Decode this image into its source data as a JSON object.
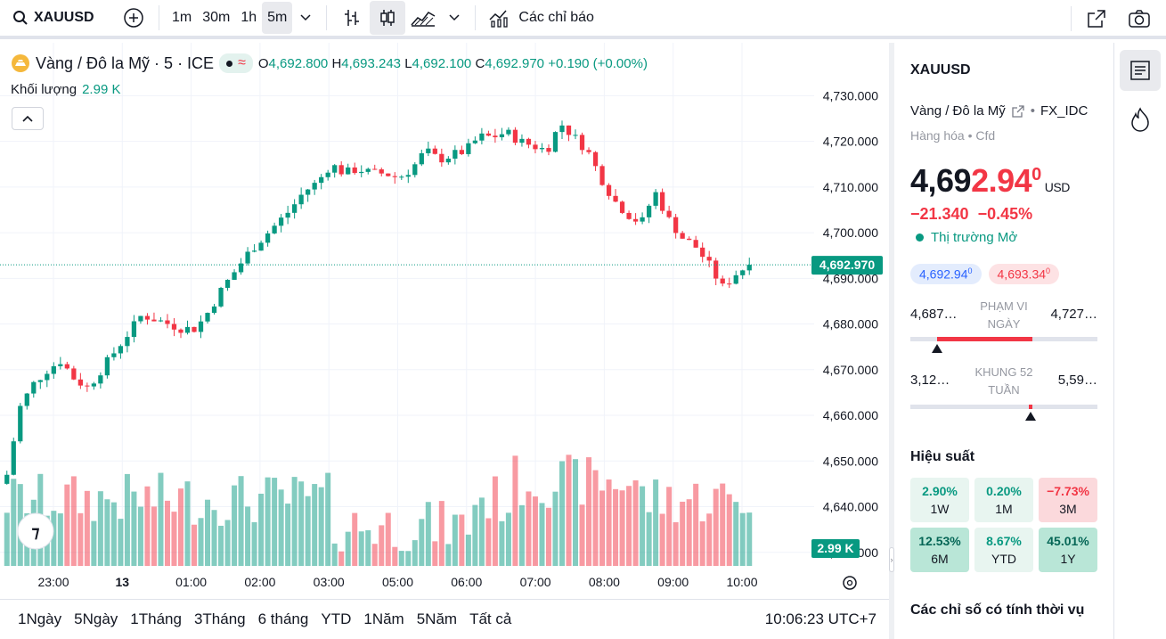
{
  "topbar": {
    "symbol": "XAUUSD",
    "timeframes": [
      "1m",
      "30m",
      "1h",
      "5m"
    ],
    "active_timeframe": "5m",
    "indicators_label": "Các chỉ báo"
  },
  "legend": {
    "title": "Vàng / Đô la Mỹ · 5 · ICE",
    "open_label": "O",
    "open": "4,692.800",
    "high_label": "H",
    "high": "4,693.243",
    "low_label": "L",
    "low": "4,692.100",
    "close_label": "C",
    "close": "4,692.970",
    "change": "+0.190 (+0.00%)",
    "volume_label": "Khối lượng",
    "volume_value": "2.99 K"
  },
  "chart_data": {
    "type": "candlestick",
    "price_axis_ticks": [
      "4,730.000",
      "4,720.000",
      "4,710.000",
      "4,700.000",
      "4,690.000",
      "4,680.000",
      "4,670.000",
      "4,660.000",
      "4,650.000",
      "4,640.000",
      "4,630.000"
    ],
    "time_axis_ticks": [
      "23:00",
      "13",
      "01:00",
      "02:00",
      "03:00",
      "05:00",
      "06:00",
      "07:00",
      "08:00",
      "09:00",
      "10:00"
    ],
    "last_price_label": "4,692.970",
    "last_volume_label": "2.99 K",
    "ylim": [
      4628,
      4733
    ],
    "close_path": [
      4647,
      4662,
      4667,
      4670,
      4672,
      4668,
      4666,
      4670,
      4674,
      4678,
      4682,
      4681,
      4680,
      4679,
      4679,
      4683,
      4688,
      4692,
      4696,
      4699,
      4702,
      4705,
      4709,
      4711,
      4715,
      4713,
      4714,
      4713,
      4713,
      4712,
      4714,
      4718,
      4716,
      4717,
      4718,
      4721,
      4721,
      4722,
      4720,
      4719,
      4718,
      4724,
      4721,
      4718,
      4712,
      4707,
      4704,
      4702,
      4709,
      4703,
      4699,
      4697,
      4693,
      4688,
      4691,
      4693
    ],
    "colors": {
      "up": "#089981",
      "down": "#f23645"
    }
  },
  "bottombar": {
    "ranges": [
      "1Ngày",
      "5Ngày",
      "1Tháng",
      "3Tháng",
      "6 tháng",
      "YTD",
      "1Năm",
      "5Năm",
      "Tất cả"
    ],
    "clock": "10:06:23 UTC+7"
  },
  "panel": {
    "symbol": "XAUUSD",
    "name": "Vàng / Đô la Mỹ",
    "source": "FX_IDC",
    "type": "Hàng hóa",
    "type2": "Cfd",
    "price_main": "4,69",
    "price_red": "2.94",
    "price_sup": "0",
    "currency": "USD",
    "change": "−21.340",
    "change_pct": "−0.45%",
    "market_status": "Thị trường Mở",
    "bid": "4,692.94",
    "bid_sup": "0",
    "ask": "4,693.34",
    "ask_sup": "0",
    "day_range": {
      "low": "4,687…",
      "label": "PHẠM VI NGÀY",
      "high": "4,727…"
    },
    "week52": {
      "low": "3,12…",
      "label": "KHUNG 52 TUẦN",
      "high": "5,59…"
    },
    "performance_title": "Hiệu suất",
    "performance": [
      {
        "value": "2.90%",
        "label": "1W",
        "tone": "g1"
      },
      {
        "value": "0.20%",
        "label": "1M",
        "tone": "g1"
      },
      {
        "value": "−7.73%",
        "label": "3M",
        "tone": "r1"
      },
      {
        "value": "12.53%",
        "label": "6M",
        "tone": "g2"
      },
      {
        "value": "8.67%",
        "label": "YTD",
        "tone": "g1"
      },
      {
        "value": "45.01%",
        "label": "1Y",
        "tone": "g2"
      }
    ],
    "seasonal_title": "Các chỉ số có tính thời vụ"
  }
}
